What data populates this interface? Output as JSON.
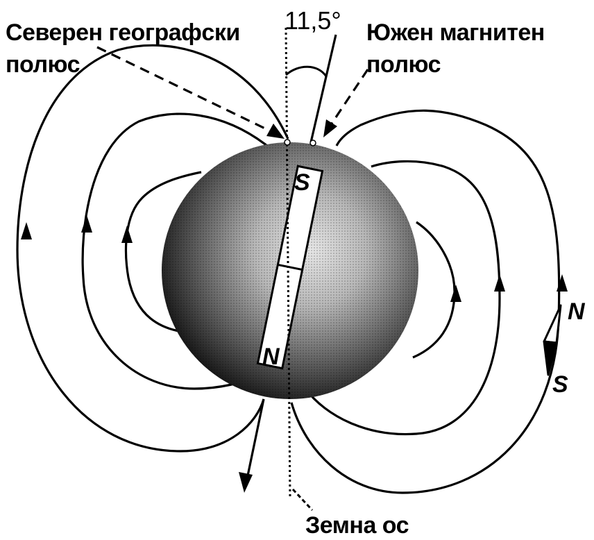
{
  "diagram": {
    "angle_label": "11,5°",
    "geographic_pole_label": [
      "Северен географски",
      "полюс"
    ],
    "magnetic_pole_label": [
      "Южен магнитен",
      "полюс"
    ],
    "earth_axis_label": "Земна ос",
    "magnet_top_pole": "S",
    "magnet_bottom_pole": "N",
    "compass_north": "N",
    "compass_south": "S"
  }
}
